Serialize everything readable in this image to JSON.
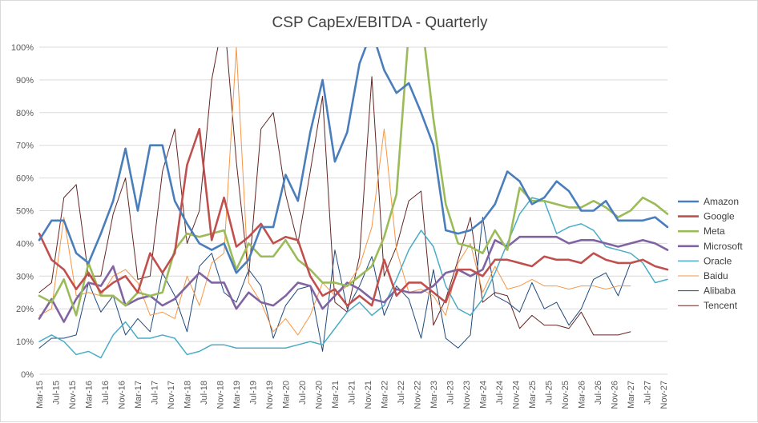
{
  "chart_data": {
    "type": "line",
    "title": "CSP CapEx/EBITDA - Quarterly",
    "xlabel": "",
    "ylabel": "",
    "ylim": [
      0,
      100
    ],
    "y_unit": "%",
    "y_ticks": [
      "0%",
      "10%",
      "20%",
      "30%",
      "40%",
      "50%",
      "60%",
      "70%",
      "80%",
      "90%",
      "100%"
    ],
    "x": [
      "Mar-15",
      "Jun-15",
      "Sep-15",
      "Dec-15",
      "Mar-16",
      "Jun-16",
      "Sep-16",
      "Dec-16",
      "Mar-17",
      "Jun-17",
      "Sep-17",
      "Dec-17",
      "Mar-18",
      "Jun-18",
      "Sep-18",
      "Dec-18",
      "Mar-19",
      "Jun-19",
      "Sep-19",
      "Dec-19",
      "Mar-20",
      "Jun-20",
      "Sep-20",
      "Dec-20",
      "Mar-21",
      "Jun-21",
      "Sep-21",
      "Dec-21",
      "Mar-22",
      "Jun-22",
      "Sep-22",
      "Dec-22",
      "Mar-23",
      "Jun-23",
      "Sep-23",
      "Dec-23",
      "Mar-24",
      "Jun-24",
      "Sep-24",
      "Dec-24",
      "Mar-25",
      "Jun-25",
      "Sep-25",
      "Dec-25",
      "Mar-26",
      "Jun-26",
      "Sep-26",
      "Dec-26",
      "Mar-27",
      "Jun-27",
      "Sep-27",
      "Dec-27"
    ],
    "x_tick_labels": [
      "Mar-15",
      "Jul-15",
      "Nov-15",
      "Mar-16",
      "Jul-16",
      "Nov-16",
      "Mar-17",
      "Jul-17",
      "Nov-17",
      "Mar-18",
      "Jul-18",
      "Nov-18",
      "Mar-19",
      "Jul-19",
      "Nov-19",
      "Mar-20",
      "Jul-20",
      "Nov-20",
      "Mar-21",
      "Jul-21",
      "Nov-21",
      "Mar-22",
      "Jul-22",
      "Nov-22",
      "Mar-23",
      "Jul-23",
      "Nov-23",
      "Mar-24",
      "Jul-24",
      "Nov-24",
      "Mar-25",
      "Jul-25",
      "Nov-25",
      "Mar-26",
      "Jul-26",
      "Nov-26",
      "Mar-27",
      "Jul-27",
      "Nov-27"
    ],
    "legend_position": "right",
    "grid": true,
    "series": [
      {
        "name": "Amazon",
        "color": "#4a7ebb",
        "width": 2.6,
        "values": [
          41,
          47,
          47,
          37,
          34,
          43,
          53,
          69,
          50,
          70,
          70,
          53,
          46,
          40,
          38,
          40,
          31,
          35,
          45,
          45,
          61,
          53,
          74,
          90,
          65,
          74,
          95,
          105,
          93,
          86,
          89,
          80,
          70,
          44,
          43,
          44,
          47,
          52,
          62,
          59,
          52,
          54,
          59,
          56,
          50,
          50,
          53,
          47,
          47,
          47,
          48,
          45
        ]
      },
      {
        "name": "Google",
        "color": "#c0504d",
        "width": 2.6,
        "values": [
          43,
          35,
          32,
          26,
          31,
          25,
          28,
          30,
          25,
          37,
          31,
          37,
          64,
          75,
          41,
          54,
          39,
          42,
          46,
          40,
          42,
          41,
          30,
          24,
          26,
          21,
          24,
          21,
          35,
          24,
          28,
          28,
          25,
          22,
          32,
          32,
          30,
          35,
          35,
          34,
          33,
          36,
          35,
          35,
          34,
          37,
          35,
          34,
          34,
          35,
          33,
          32
        ]
      },
      {
        "name": "Meta",
        "color": "#9bbb59",
        "width": 2.6,
        "values": [
          24,
          22,
          29,
          18,
          34,
          24,
          24,
          21,
          25,
          24,
          25,
          38,
          43,
          42,
          43,
          44,
          32,
          40,
          36,
          36,
          41,
          35,
          32,
          28,
          28,
          27,
          30,
          33,
          42,
          55,
          105,
          110,
          78,
          52,
          40,
          39,
          37,
          44,
          38,
          57,
          53,
          53,
          52,
          51,
          51,
          53,
          51,
          48,
          50,
          54,
          52,
          49
        ]
      },
      {
        "name": "Microsoft",
        "color": "#8064a2",
        "width": 2.6,
        "values": [
          17,
          23,
          16,
          23,
          28,
          27,
          33,
          21,
          23,
          24,
          21,
          23,
          27,
          31,
          28,
          28,
          20,
          25,
          22,
          21,
          24,
          28,
          27,
          20,
          24,
          28,
          26,
          23,
          22,
          26,
          25,
          25,
          27,
          31,
          32,
          30,
          32,
          41,
          39,
          42,
          42,
          42,
          42,
          40,
          41,
          41,
          40,
          39,
          40,
          41,
          40,
          38
        ]
      },
      {
        "name": "Oracle",
        "color": "#4bacc6",
        "width": 1.5,
        "values": [
          10,
          12,
          10,
          6,
          7,
          5,
          12,
          16,
          11,
          11,
          12,
          11,
          6,
          7,
          9,
          9,
          8,
          8,
          8,
          8,
          8,
          9,
          10,
          9,
          14,
          19,
          22,
          18,
          21,
          29,
          38,
          44,
          39,
          27,
          20,
          18,
          23,
          31,
          40,
          49,
          54,
          53,
          43,
          45,
          46,
          44,
          39,
          38,
          37,
          34,
          28,
          29
        ]
      },
      {
        "name": "Baidu",
        "color": "#f79646",
        "width": 1.0,
        "values": [
          18,
          20,
          48,
          24,
          25,
          24,
          30,
          32,
          28,
          18,
          19,
          17,
          30,
          21,
          34,
          37,
          100,
          28,
          22,
          13,
          17,
          12,
          18,
          28,
          24,
          27,
          33,
          45,
          75,
          38,
          25,
          26,
          24,
          18,
          34,
          40,
          25,
          33,
          26,
          27,
          29,
          27,
          27,
          26,
          27,
          27,
          26,
          27,
          27,
          null,
          null,
          null
        ]
      },
      {
        "name": "Alibaba",
        "color": "#1f497d",
        "width": 1.0,
        "values": [
          8,
          11,
          11,
          12,
          28,
          19,
          24,
          12,
          17,
          13,
          31,
          24,
          13,
          33,
          37,
          25,
          22,
          32,
          27,
          11,
          21,
          26,
          27,
          7,
          38,
          20,
          27,
          36,
          18,
          27,
          23,
          11,
          32,
          11,
          8,
          12,
          48,
          24,
          22,
          19,
          28,
          20,
          22,
          15,
          20,
          29,
          31,
          24,
          34,
          null,
          null,
          null
        ]
      },
      {
        "name": "Tencent",
        "color": "#632523",
        "width": 1.0,
        "values": [
          25,
          28,
          54,
          58,
          30,
          30,
          49,
          60,
          29,
          30,
          62,
          75,
          40,
          50,
          90,
          110,
          65,
          30,
          75,
          80,
          55,
          40,
          62,
          85,
          22,
          19,
          36,
          91,
          30,
          39,
          53,
          56,
          15,
          23,
          35,
          48,
          22,
          25,
          24,
          14,
          18,
          15,
          15,
          14,
          19,
          12,
          12,
          12,
          13,
          null,
          null,
          null
        ]
      }
    ]
  }
}
